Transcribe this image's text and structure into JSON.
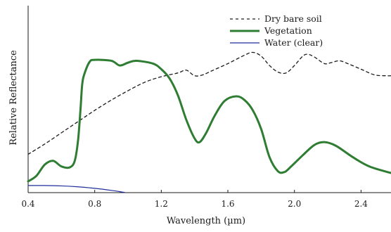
{
  "chart_data": {
    "type": "line",
    "xlabel": "Wavelength (µm)",
    "ylabel": "Relative Reflectance",
    "xlim": [
      0.4,
      2.58
    ],
    "ylim": [
      0,
      100
    ],
    "x_ticks": [
      "0.4",
      "0.8",
      "1.2",
      "1.6",
      "2.0",
      "2.4"
    ],
    "x_tick_values": [
      0.4,
      0.8,
      1.2,
      1.6,
      2.0,
      2.4
    ],
    "y_tick_labels": "none",
    "grid": false,
    "legend_position": "top-right",
    "series": [
      {
        "name": "Dry bare soil",
        "color": "#1a1a1a",
        "style": "dashed",
        "points": [
          [
            0.4,
            20.5
          ],
          [
            0.5,
            26
          ],
          [
            0.6,
            32
          ],
          [
            0.7,
            38
          ],
          [
            0.8,
            44
          ],
          [
            0.9,
            49.5
          ],
          [
            1.0,
            54.5
          ],
          [
            1.1,
            59
          ],
          [
            1.2,
            62
          ],
          [
            1.3,
            64
          ],
          [
            1.35,
            65.5
          ],
          [
            1.4,
            62.5
          ],
          [
            1.45,
            63
          ],
          [
            1.5,
            65
          ],
          [
            1.6,
            69
          ],
          [
            1.7,
            73.5
          ],
          [
            1.75,
            75
          ],
          [
            1.8,
            73
          ],
          [
            1.85,
            68
          ],
          [
            1.9,
            64.5
          ],
          [
            1.95,
            64
          ],
          [
            2.0,
            68
          ],
          [
            2.05,
            73
          ],
          [
            2.08,
            74
          ],
          [
            2.12,
            72.5
          ],
          [
            2.18,
            69
          ],
          [
            2.22,
            69.5
          ],
          [
            2.27,
            70.5
          ],
          [
            2.32,
            69
          ],
          [
            2.4,
            66
          ],
          [
            2.48,
            63
          ],
          [
            2.55,
            62.5
          ],
          [
            2.58,
            62.5
          ]
        ]
      },
      {
        "name": "Vegetation",
        "color": "#2e7d32",
        "style": "solid",
        "points": [
          [
            0.4,
            6
          ],
          [
            0.45,
            9
          ],
          [
            0.5,
            15
          ],
          [
            0.55,
            17
          ],
          [
            0.6,
            14
          ],
          [
            0.65,
            13.5
          ],
          [
            0.68,
            17
          ],
          [
            0.7,
            28
          ],
          [
            0.715,
            45
          ],
          [
            0.725,
            58
          ],
          [
            0.74,
            64
          ],
          [
            0.77,
            70
          ],
          [
            0.8,
            71
          ],
          [
            0.9,
            70.5
          ],
          [
            0.95,
            68
          ],
          [
            1.0,
            69.5
          ],
          [
            1.05,
            70.5
          ],
          [
            1.15,
            69
          ],
          [
            1.2,
            66
          ],
          [
            1.25,
            61
          ],
          [
            1.3,
            52
          ],
          [
            1.35,
            39
          ],
          [
            1.4,
            29
          ],
          [
            1.43,
            27
          ],
          [
            1.47,
            32
          ],
          [
            1.52,
            41
          ],
          [
            1.58,
            49
          ],
          [
            1.65,
            51.5
          ],
          [
            1.7,
            49.5
          ],
          [
            1.75,
            44
          ],
          [
            1.8,
            34
          ],
          [
            1.85,
            19
          ],
          [
            1.9,
            11.5
          ],
          [
            1.94,
            11
          ],
          [
            1.98,
            14
          ],
          [
            2.05,
            20
          ],
          [
            2.12,
            25.5
          ],
          [
            2.18,
            27
          ],
          [
            2.25,
            25
          ],
          [
            2.35,
            19
          ],
          [
            2.45,
            14
          ],
          [
            2.58,
            10.5
          ]
        ]
      },
      {
        "name": "Water (clear)",
        "color": "#1e2e9c",
        "style": "solid",
        "points": [
          [
            0.4,
            3.8
          ],
          [
            0.5,
            3.8
          ],
          [
            0.6,
            3.6
          ],
          [
            0.7,
            3.1
          ],
          [
            0.8,
            2.3
          ],
          [
            0.9,
            1.2
          ],
          [
            0.98,
            0.1
          ]
        ]
      }
    ]
  }
}
